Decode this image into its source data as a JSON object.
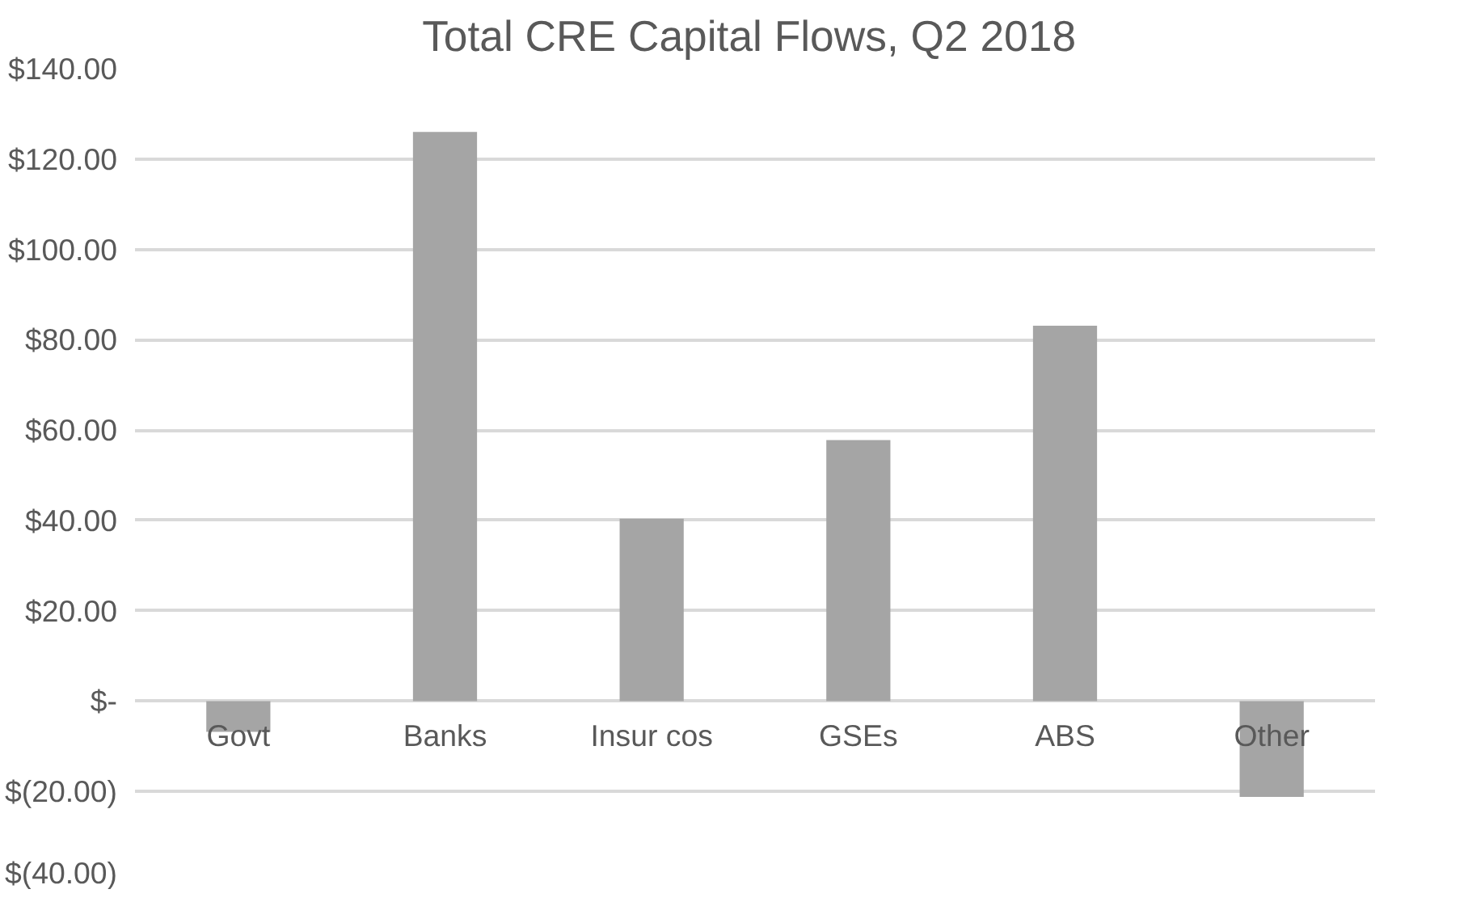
{
  "chart_data": {
    "type": "bar",
    "title": "Total CRE Capital Flows,  Q2 2018",
    "categories": [
      "Govt",
      "Banks",
      "Insur cos",
      "GSEs",
      "ABS",
      "Other"
    ],
    "values": [
      -6.8,
      126,
      40.4,
      57.8,
      83.1,
      -21.2
    ],
    "color": "#a5a5a5",
    "ylim": [
      -40,
      140
    ],
    "yticks": [
      {
        "value": -40,
        "label": "$(40.00)"
      },
      {
        "value": -20,
        "label": "$(20.00)"
      },
      {
        "value": 0,
        "label": "$-"
      },
      {
        "value": 20,
        "label": "$20.00"
      },
      {
        "value": 40,
        "label": "$40.00"
      },
      {
        "value": 60,
        "label": "$60.00"
      },
      {
        "value": 80,
        "label": "$80.00"
      },
      {
        "value": 100,
        "label": "$100.00"
      },
      {
        "value": 120,
        "label": "$120.00"
      },
      {
        "value": 140,
        "label": "$140.00"
      }
    ],
    "grid": "y"
  }
}
